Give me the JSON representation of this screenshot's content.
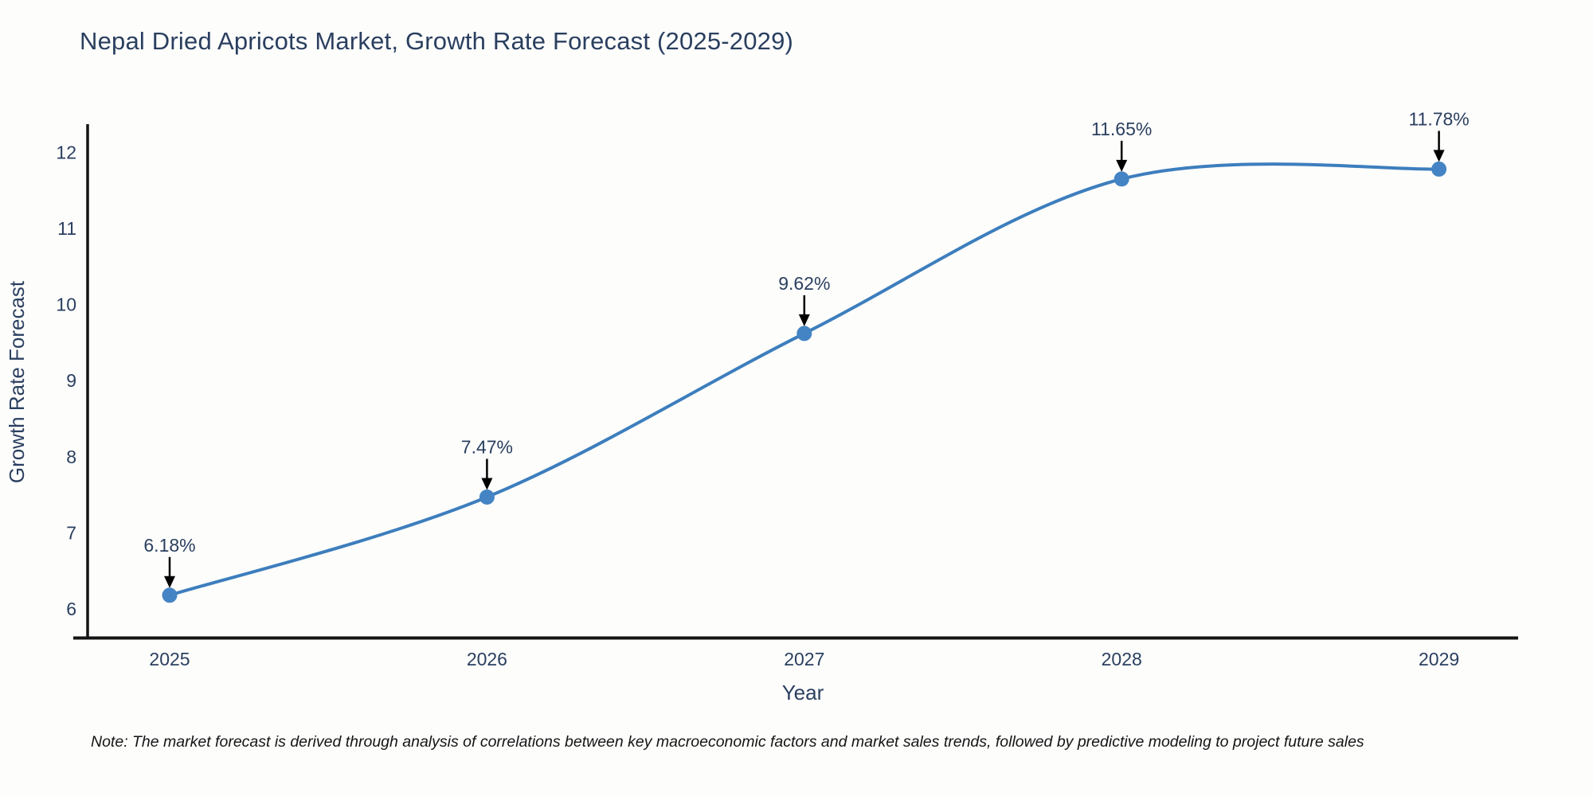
{
  "note": {
    "text": "Note: The market forecast is derived through analysis of correlations between key macroeconomic factors and market sales trends, followed by predictive modeling to project future sales"
  },
  "chart_data": {
    "type": "line",
    "title": "Nepal Dried Apricots Market, Growth Rate Forecast (2025-2029)",
    "xlabel": "Year",
    "ylabel": "Growth Rate Forecast",
    "x": [
      2025,
      2026,
      2027,
      2028,
      2029
    ],
    "x_ticks": [
      "2025",
      "2026",
      "2027",
      "2028",
      "2029"
    ],
    "series": [
      {
        "name": "Growth Rate Forecast",
        "values": [
          6.18,
          7.47,
          9.62,
          11.65,
          11.78
        ]
      }
    ],
    "point_labels": [
      "6.18%",
      "7.47%",
      "9.62%",
      "11.65%",
      "11.78%"
    ],
    "y_ticks": [
      6,
      7,
      8,
      9,
      10,
      11,
      12
    ],
    "ylim": [
      5.65,
      12.35
    ],
    "line_shape": "spline",
    "grid": false,
    "legend": "none",
    "markers": true,
    "annotations_arrows": true,
    "colors": {
      "line": "#3d7ebd",
      "marker": "#4484c4",
      "axis": "#141414",
      "tick_text": "#2a3f5f",
      "title_text": "#2a3f5f",
      "annotation_text": "#2a3f5f",
      "arrow": "#000000",
      "background": "#fdfdfc"
    }
  }
}
